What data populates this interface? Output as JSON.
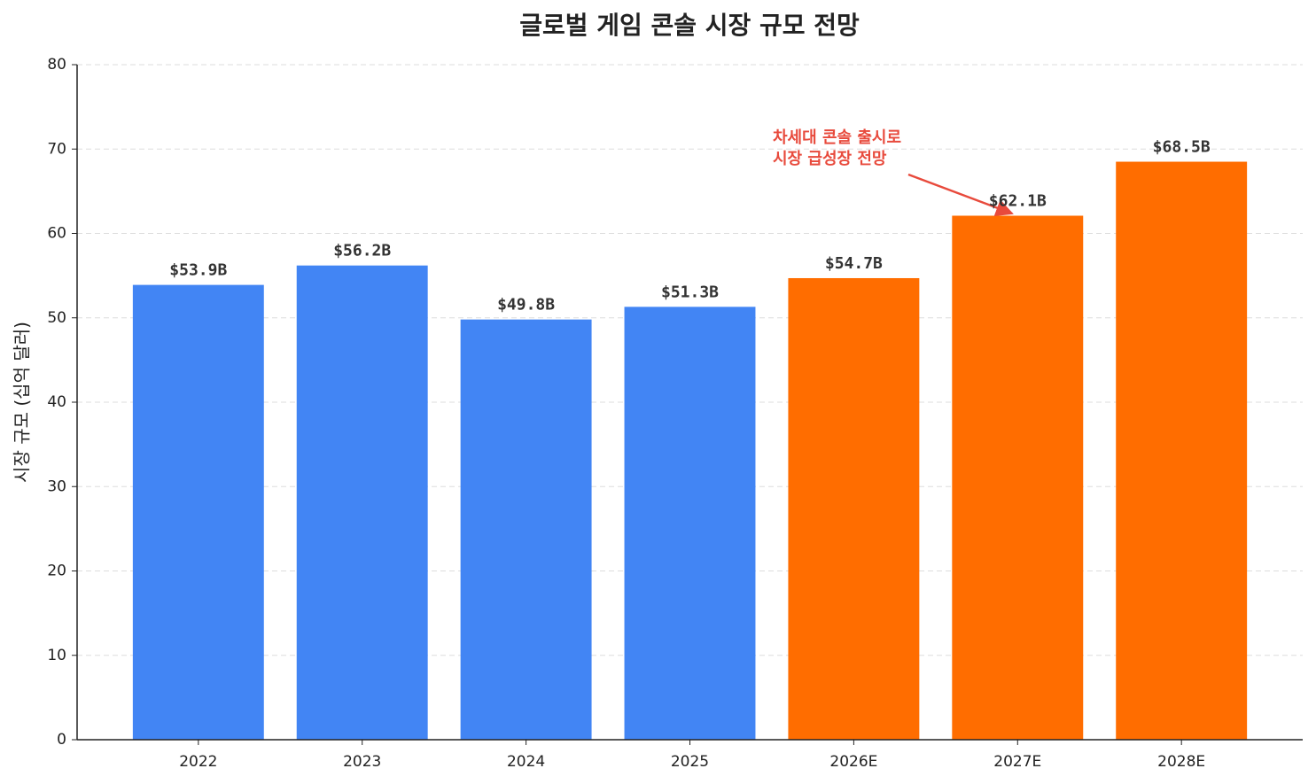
{
  "chart_data": {
    "type": "bar",
    "title": "글로벌 게임 콘솔 시장 규모 전망",
    "y_label": "시장 규모 (십억 달러)",
    "categories": [
      "2022",
      "2023",
      "2024",
      "2025",
      "2026E",
      "2027E",
      "2028E"
    ],
    "values": [
      53.9,
      56.2,
      49.8,
      51.3,
      54.7,
      62.1,
      68.5
    ],
    "value_labels": [
      "$53.9B",
      "$56.2B",
      "$49.8B",
      "$51.3B",
      "$54.7B",
      "$62.1B",
      "$68.5B"
    ],
    "colors": [
      "#4285f4",
      "#4285f4",
      "#4285f4",
      "#4285f4",
      "#ff6d00",
      "#ff6d00",
      "#ff6d00"
    ],
    "ylim": [
      0,
      80
    ],
    "yticks": [
      0,
      10,
      20,
      30,
      40,
      50,
      60,
      70,
      80
    ],
    "grid": true,
    "annotation": {
      "lines": [
        "차세대 콘솔 출시로",
        "시장 급성장 전망"
      ],
      "color": "#e84a3c"
    }
  }
}
